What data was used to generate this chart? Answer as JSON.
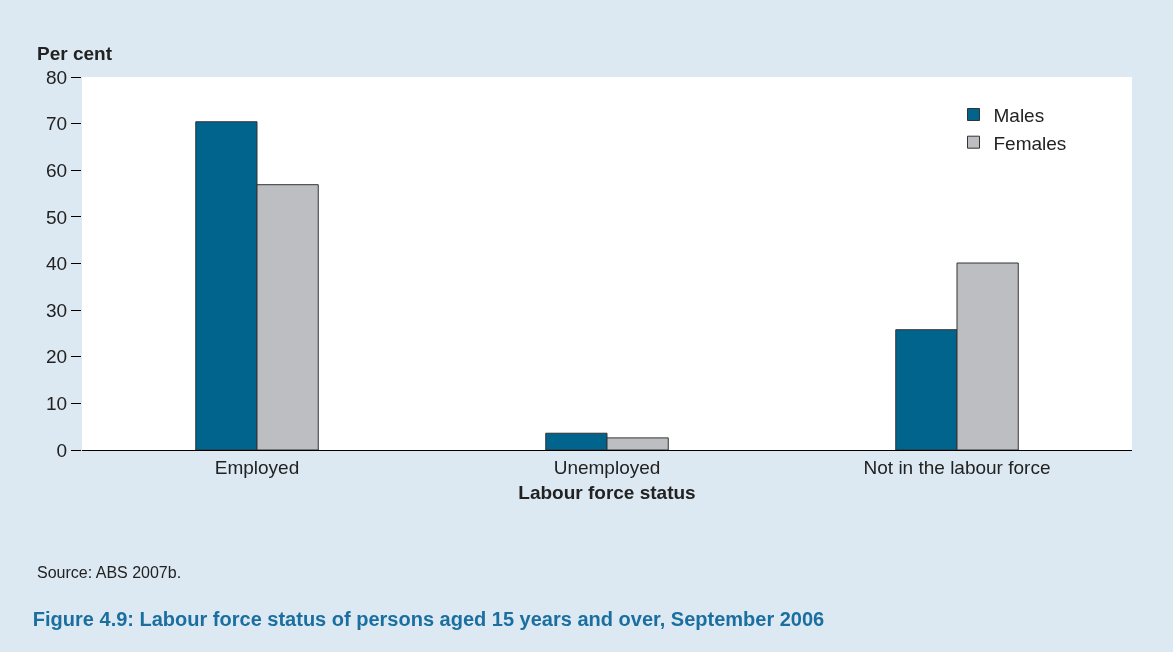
{
  "chart_data": {
    "type": "bar",
    "title": "Figure 4.9: Labour force status of persons aged 15 years and over, September 2006",
    "xlabel": "Labour force status",
    "ylabel": "Per cent",
    "categories": [
      "Employed",
      "Unemployed",
      "Not in the labour force"
    ],
    "series": [
      {
        "name": "Males",
        "color": "#00648c",
        "values": [
          70.4,
          3.6,
          25.8
        ]
      },
      {
        "name": "Females",
        "color": "#bdbec2",
        "values": [
          56.9,
          2.6,
          40.1
        ]
      }
    ],
    "ylim": [
      0,
      80
    ],
    "yticks": [
      0,
      10,
      20,
      30,
      40,
      50,
      60,
      70,
      80
    ],
    "legend": "top right",
    "annotations": [
      "Source: ABS 2007b."
    ]
  }
}
